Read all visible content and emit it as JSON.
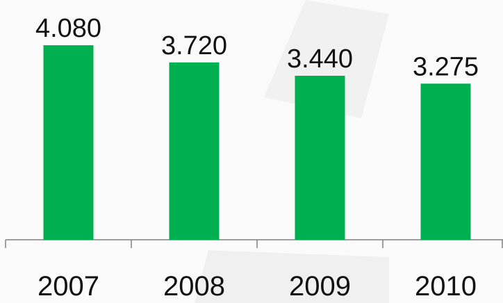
{
  "chart_data": {
    "type": "bar",
    "categories": [
      "2007",
      "2008",
      "2009",
      "2010"
    ],
    "values": [
      4080,
      3720,
      3440,
      3275
    ],
    "value_labels": [
      "4.080",
      "3.720",
      "3.440",
      "3.275"
    ],
    "color": "#00b050",
    "ylim": [
      0,
      5000
    ]
  }
}
